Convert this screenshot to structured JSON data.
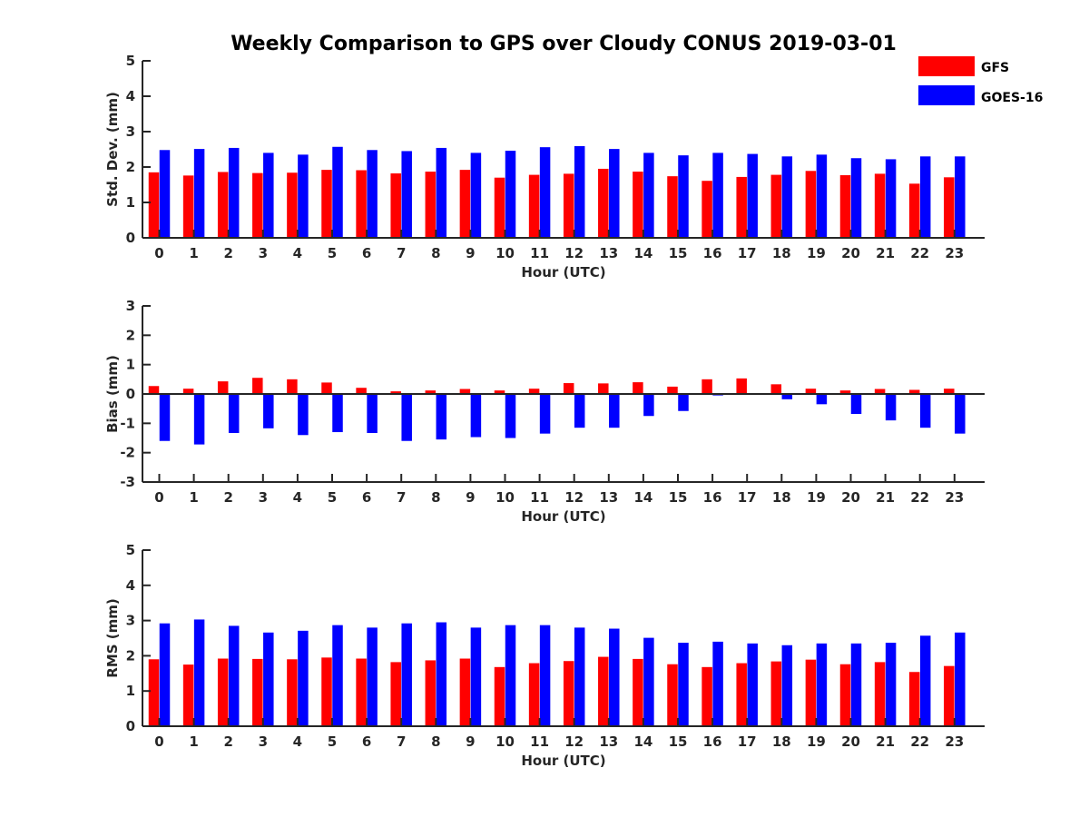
{
  "chart_data": [
    {
      "type": "bar",
      "title": "Weekly Comparison to GPS over Cloudy CONUS 2019-03-01",
      "xlabel": "Hour (UTC)",
      "ylabel": "Std. Dev. (mm)",
      "ylim": [
        0,
        5
      ],
      "yticks": [
        "0",
        "1",
        "2",
        "3",
        "4",
        "5"
      ],
      "categories": [
        "0",
        "1",
        "2",
        "3",
        "4",
        "5",
        "6",
        "7",
        "8",
        "9",
        "10",
        "11",
        "12",
        "13",
        "14",
        "15",
        "16",
        "17",
        "18",
        "19",
        "20",
        "21",
        "22",
        "23"
      ],
      "series": [
        {
          "name": "GFS",
          "color": "#ff0000",
          "values": [
            1.85,
            1.76,
            1.86,
            1.83,
            1.84,
            1.92,
            1.91,
            1.82,
            1.87,
            1.92,
            1.7,
            1.78,
            1.81,
            1.95,
            1.87,
            1.74,
            1.61,
            1.72,
            1.78,
            1.89,
            1.77,
            1.81,
            1.53,
            1.71
          ]
        },
        {
          "name": "GOES-16",
          "color": "#0000ff",
          "values": [
            2.48,
            2.51,
            2.54,
            2.4,
            2.35,
            2.57,
            2.48,
            2.45,
            2.54,
            2.4,
            2.46,
            2.56,
            2.59,
            2.51,
            2.4,
            2.33,
            2.4,
            2.37,
            2.3,
            2.35,
            2.25,
            2.22,
            2.3,
            2.3
          ]
        }
      ],
      "grid": false,
      "legend": "top-right"
    },
    {
      "type": "bar",
      "xlabel": "Hour (UTC)",
      "ylabel": "Bias (mm)",
      "ylim": [
        -3,
        3
      ],
      "yticks": [
        "-3",
        "-2",
        "-1",
        "0",
        "1",
        "2",
        "3"
      ],
      "categories": [
        "0",
        "1",
        "2",
        "3",
        "4",
        "5",
        "6",
        "7",
        "8",
        "9",
        "10",
        "11",
        "12",
        "13",
        "14",
        "15",
        "16",
        "17",
        "18",
        "19",
        "20",
        "21",
        "22",
        "23"
      ],
      "series": [
        {
          "name": "GFS",
          "color": "#ff0000",
          "values": [
            0.27,
            0.18,
            0.43,
            0.55,
            0.5,
            0.39,
            0.21,
            0.09,
            0.12,
            0.17,
            0.12,
            0.18,
            0.37,
            0.36,
            0.4,
            0.25,
            0.5,
            0.53,
            0.33,
            0.18,
            0.12,
            0.17,
            0.14,
            0.18
          ]
        },
        {
          "name": "GOES-16",
          "color": "#0000ff",
          "values": [
            -1.6,
            -1.72,
            -1.33,
            -1.17,
            -1.4,
            -1.3,
            -1.33,
            -1.6,
            -1.55,
            -1.47,
            -1.5,
            -1.35,
            -1.15,
            -1.15,
            -0.75,
            -0.58,
            -0.05,
            0.0,
            -0.18,
            -0.35,
            -0.68,
            -0.9,
            -1.15,
            -1.35
          ]
        }
      ],
      "grid": false
    },
    {
      "type": "bar",
      "xlabel": "Hour (UTC)",
      "ylabel": "RMS (mm)",
      "ylim": [
        0,
        5
      ],
      "yticks": [
        "0",
        "1",
        "2",
        "3",
        "4",
        "5"
      ],
      "categories": [
        "0",
        "1",
        "2",
        "3",
        "4",
        "5",
        "6",
        "7",
        "8",
        "9",
        "10",
        "11",
        "12",
        "13",
        "14",
        "15",
        "16",
        "17",
        "18",
        "19",
        "20",
        "21",
        "22",
        "23"
      ],
      "series": [
        {
          "name": "GFS",
          "color": "#ff0000",
          "values": [
            1.9,
            1.75,
            1.92,
            1.91,
            1.9,
            1.95,
            1.92,
            1.82,
            1.87,
            1.92,
            1.68,
            1.79,
            1.85,
            1.97,
            1.91,
            1.76,
            1.68,
            1.79,
            1.84,
            1.89,
            1.76,
            1.82,
            1.54,
            1.71
          ]
        },
        {
          "name": "GOES-16",
          "color": "#0000ff",
          "values": [
            2.92,
            3.03,
            2.85,
            2.66,
            2.71,
            2.87,
            2.8,
            2.92,
            2.95,
            2.8,
            2.87,
            2.87,
            2.8,
            2.77,
            2.51,
            2.37,
            2.4,
            2.35,
            2.3,
            2.35,
            2.35,
            2.37,
            2.57,
            2.66
          ]
        }
      ],
      "grid": false
    }
  ]
}
